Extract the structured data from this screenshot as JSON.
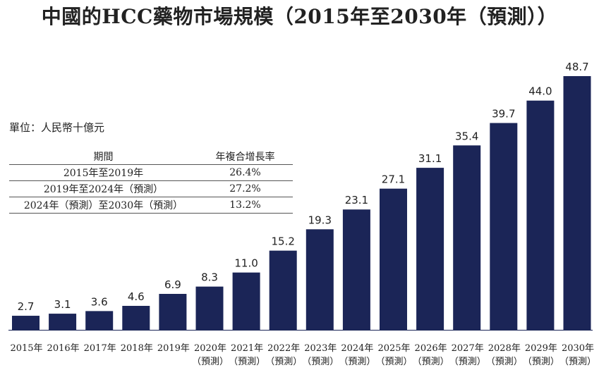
{
  "chart_data": {
    "type": "bar",
    "title": "中國的HCC藥物市場規模（2015年至2030年（預測））",
    "unit_label": "單位：人民幣十億元",
    "categories": [
      {
        "year": "2015年",
        "note": ""
      },
      {
        "year": "2016年",
        "note": ""
      },
      {
        "year": "2017年",
        "note": ""
      },
      {
        "year": "2018年",
        "note": ""
      },
      {
        "year": "2019年",
        "note": ""
      },
      {
        "year": "2020年",
        "note": "（預測）"
      },
      {
        "year": "2021年",
        "note": "（預測）"
      },
      {
        "year": "2022年",
        "note": "（預測）"
      },
      {
        "year": "2023年",
        "note": "（預測）"
      },
      {
        "year": "2024年",
        "note": "（預測）"
      },
      {
        "year": "2025年",
        "note": "（預測）"
      },
      {
        "year": "2026年",
        "note": "（預測）"
      },
      {
        "year": "2027年",
        "note": "（預測）"
      },
      {
        "year": "2028年",
        "note": "（預測）"
      },
      {
        "year": "2029年",
        "note": "（預測）"
      },
      {
        "year": "2030年",
        "note": "（預測）"
      }
    ],
    "values": [
      2.7,
      3.1,
      3.6,
      4.6,
      6.9,
      8.3,
      11.0,
      15.2,
      19.3,
      23.1,
      27.1,
      31.1,
      35.4,
      39.7,
      44.0,
      48.7
    ],
    "value_labels": [
      "2.7",
      "3.1",
      "3.6",
      "4.6",
      "6.9",
      "8.3",
      "11.0",
      "15.2",
      "19.3",
      "23.1",
      "27.1",
      "31.1",
      "35.4",
      "39.7",
      "44.0",
      "48.7"
    ],
    "ylim": [
      0,
      48.7
    ],
    "bar_color": "#1b2557",
    "cagr_table": {
      "headers": [
        "期間",
        "年複合增長率"
      ],
      "rows": [
        [
          "2015年至2019年",
          "26.4%"
        ],
        [
          "2019年至2024年（預測）",
          "27.2%"
        ],
        [
          "2024年（預測）至2030年（預測）",
          "13.2%"
        ]
      ]
    }
  }
}
